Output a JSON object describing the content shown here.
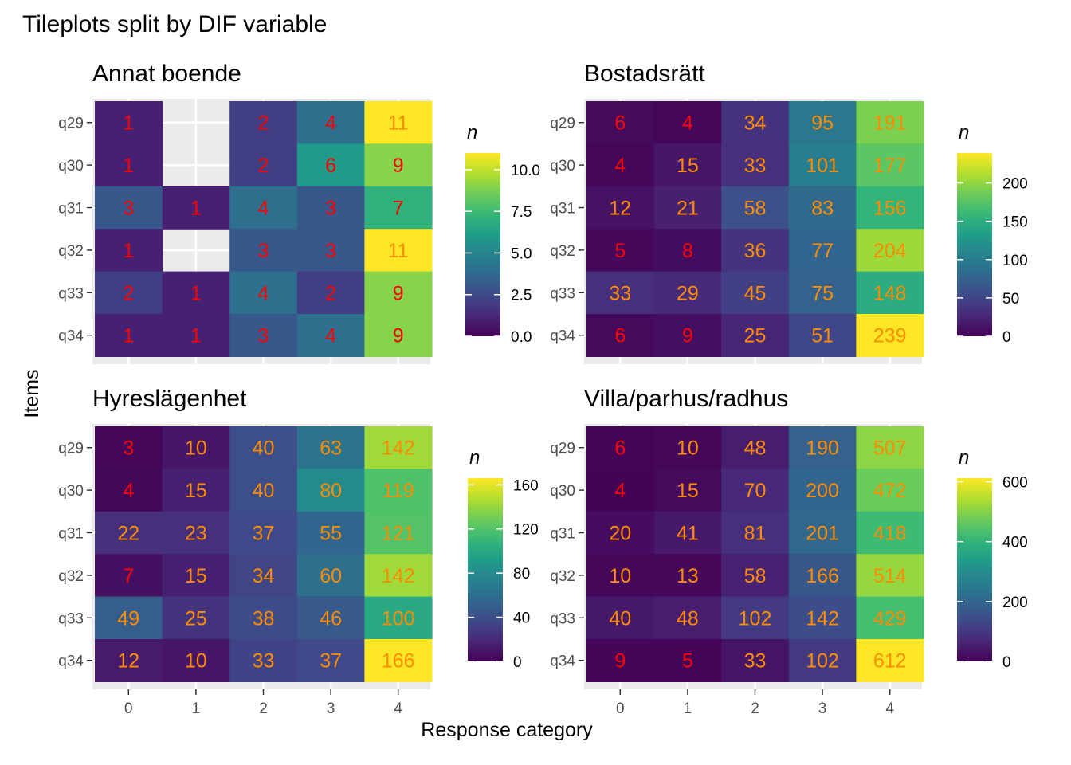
{
  "title": "Tileplots split by DIF variable",
  "xlabel": "Response category",
  "ylabel": "Items",
  "legend_title": "n",
  "chart_data": [
    {
      "type": "heatmap",
      "title": "Annat boende",
      "x": [
        "0",
        "1",
        "2",
        "3",
        "4"
      ],
      "y": [
        "q29",
        "q30",
        "q31",
        "q32",
        "q33",
        "q34"
      ],
      "values": [
        [
          1,
          null,
          2,
          4,
          11
        ],
        [
          1,
          null,
          2,
          6,
          9
        ],
        [
          3,
          1,
          4,
          3,
          7
        ],
        [
          1,
          null,
          3,
          3,
          11
        ],
        [
          2,
          1,
          4,
          2,
          9
        ],
        [
          1,
          1,
          3,
          4,
          9
        ]
      ],
      "scale": {
        "min": 0,
        "max": 11,
        "ticks": [
          "0.0",
          "2.5",
          "5.0",
          "7.5",
          "10.0"
        ],
        "tick_values": [
          0,
          2.5,
          5,
          7.5,
          10
        ]
      },
      "show_x_ticks": false
    },
    {
      "type": "heatmap",
      "title": "Bostadsrätt",
      "x": [
        "0",
        "1",
        "2",
        "3",
        "4"
      ],
      "y": [
        "q29",
        "q30",
        "q31",
        "q32",
        "q33",
        "q34"
      ],
      "values": [
        [
          6,
          4,
          34,
          95,
          191
        ],
        [
          4,
          15,
          33,
          101,
          177
        ],
        [
          12,
          21,
          58,
          83,
          156
        ],
        [
          5,
          8,
          36,
          77,
          204
        ],
        [
          33,
          29,
          45,
          75,
          148
        ],
        [
          6,
          9,
          25,
          51,
          239
        ]
      ],
      "scale": {
        "min": 0,
        "max": 239,
        "ticks": [
          "0",
          "50",
          "100",
          "150",
          "200"
        ],
        "tick_values": [
          0,
          50,
          100,
          150,
          200
        ]
      },
      "show_x_ticks": false
    },
    {
      "type": "heatmap",
      "title": "Hyreslägenhet",
      "x": [
        "0",
        "1",
        "2",
        "3",
        "4"
      ],
      "y": [
        "q29",
        "q30",
        "q31",
        "q32",
        "q33",
        "q34"
      ],
      "values": [
        [
          3,
          10,
          40,
          63,
          142
        ],
        [
          4,
          15,
          40,
          80,
          119
        ],
        [
          22,
          23,
          37,
          55,
          121
        ],
        [
          7,
          15,
          34,
          60,
          142
        ],
        [
          49,
          25,
          38,
          46,
          100
        ],
        [
          12,
          10,
          33,
          37,
          166
        ]
      ],
      "scale": {
        "min": 0,
        "max": 166,
        "ticks": [
          "0",
          "40",
          "80",
          "120",
          "160"
        ],
        "tick_values": [
          0,
          40,
          80,
          120,
          160
        ]
      },
      "show_x_ticks": true
    },
    {
      "type": "heatmap",
      "title": "Villa/parhus/radhus",
      "x": [
        "0",
        "1",
        "2",
        "3",
        "4"
      ],
      "y": [
        "q29",
        "q30",
        "q31",
        "q32",
        "q33",
        "q34"
      ],
      "values": [
        [
          6,
          10,
          48,
          190,
          507
        ],
        [
          4,
          15,
          70,
          200,
          472
        ],
        [
          20,
          41,
          81,
          201,
          418
        ],
        [
          10,
          13,
          58,
          166,
          514
        ],
        [
          40,
          48,
          102,
          142,
          429
        ],
        [
          9,
          5,
          33,
          102,
          612
        ]
      ],
      "scale": {
        "min": 0,
        "max": 612,
        "ticks": [
          "0",
          "200",
          "400",
          "600"
        ],
        "tick_values": [
          0,
          200,
          400,
          600
        ]
      },
      "show_x_ticks": true
    }
  ],
  "colors": {
    "label_low": "#ff0000",
    "label_high": "#ff8c00",
    "na_fill": "#e5e5e5",
    "panel_bg": "#ebebeb",
    "grid": "#ffffff",
    "text": "#000000",
    "tick_text": "#4d4d4d"
  },
  "colormap": "viridis"
}
